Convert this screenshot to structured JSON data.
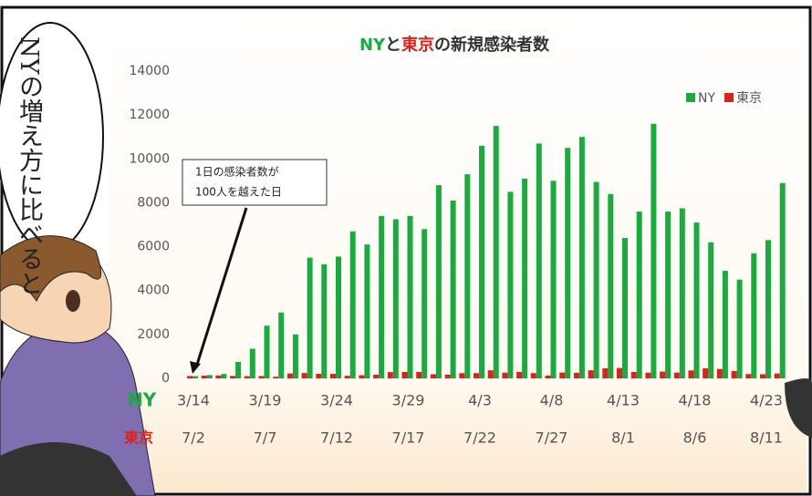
{
  "speech_bubble": [
    "NYの増え方に",
    "比べると"
  ],
  "chart_data": {
    "type": "bar",
    "title": [
      "NY",
      "と",
      "東京",
      "の新規感染者数"
    ],
    "title_colors": [
      "#1aab3f",
      "#333333",
      "#e0201b",
      "#333333"
    ],
    "annotation": [
      "1日の感染者数が",
      "100人を越えた日"
    ],
    "category_rows": [
      {
        "name": "NY",
        "color": "#1aab3f",
        "labels": [
          "3/14",
          null,
          null,
          null,
          null,
          "3/19",
          null,
          null,
          null,
          null,
          "3/24",
          null,
          null,
          null,
          null,
          "3/29",
          null,
          null,
          null,
          null,
          "4/3",
          null,
          null,
          null,
          null,
          "4/8",
          null,
          null,
          null,
          null,
          "4/13",
          null,
          null,
          null,
          null,
          "4/18",
          null,
          null,
          null,
          null,
          "4/23",
          null
        ]
      },
      {
        "name": "東京",
        "color": "#e0201b",
        "labels": [
          "7/2",
          null,
          null,
          null,
          null,
          "7/7",
          null,
          null,
          null,
          null,
          "7/12",
          null,
          null,
          null,
          null,
          "7/17",
          null,
          null,
          null,
          null,
          "7/22",
          null,
          null,
          null,
          null,
          "7/27",
          null,
          null,
          null,
          null,
          "8/1",
          null,
          null,
          null,
          null,
          "8/6",
          null,
          null,
          null,
          null,
          "8/11",
          null
        ]
      }
    ],
    "series": [
      {
        "name": "NY",
        "color": "#1aab3f",
        "values": [
          100,
          150,
          200,
          750,
          1350,
          2400,
          3000,
          2000,
          5500,
          5200,
          5550,
          6700,
          6100,
          7400,
          7250,
          7400,
          6800,
          8800,
          8100,
          9300,
          10600,
          11500,
          8500,
          9100,
          10700,
          9000,
          10500,
          11000,
          8950,
          8400,
          6400,
          7600,
          11600,
          7600,
          7750,
          7100,
          6200,
          4900,
          4500,
          5700,
          6300,
          8900
        ]
      },
      {
        "name": "東京",
        "color": "#e0201b",
        "values": [
          107,
          124,
          131,
          111,
          102,
          106,
          75,
          224,
          243,
          206,
          206,
          119,
          143,
          165,
          286,
          293,
          290,
          188,
          168,
          237,
          238,
          366,
          260,
          295,
          239,
          131,
          266,
          250,
          367,
          463,
          472,
          292,
          258,
          309,
          263,
          360,
          462,
          429,
          331,
          197,
          188,
          222
        ]
      }
    ],
    "ylim": [
      0,
      14000
    ],
    "yticks": [
      0,
      2000,
      4000,
      6000,
      8000,
      10000,
      12000,
      14000
    ],
    "grid": false,
    "legend": "top-right"
  }
}
